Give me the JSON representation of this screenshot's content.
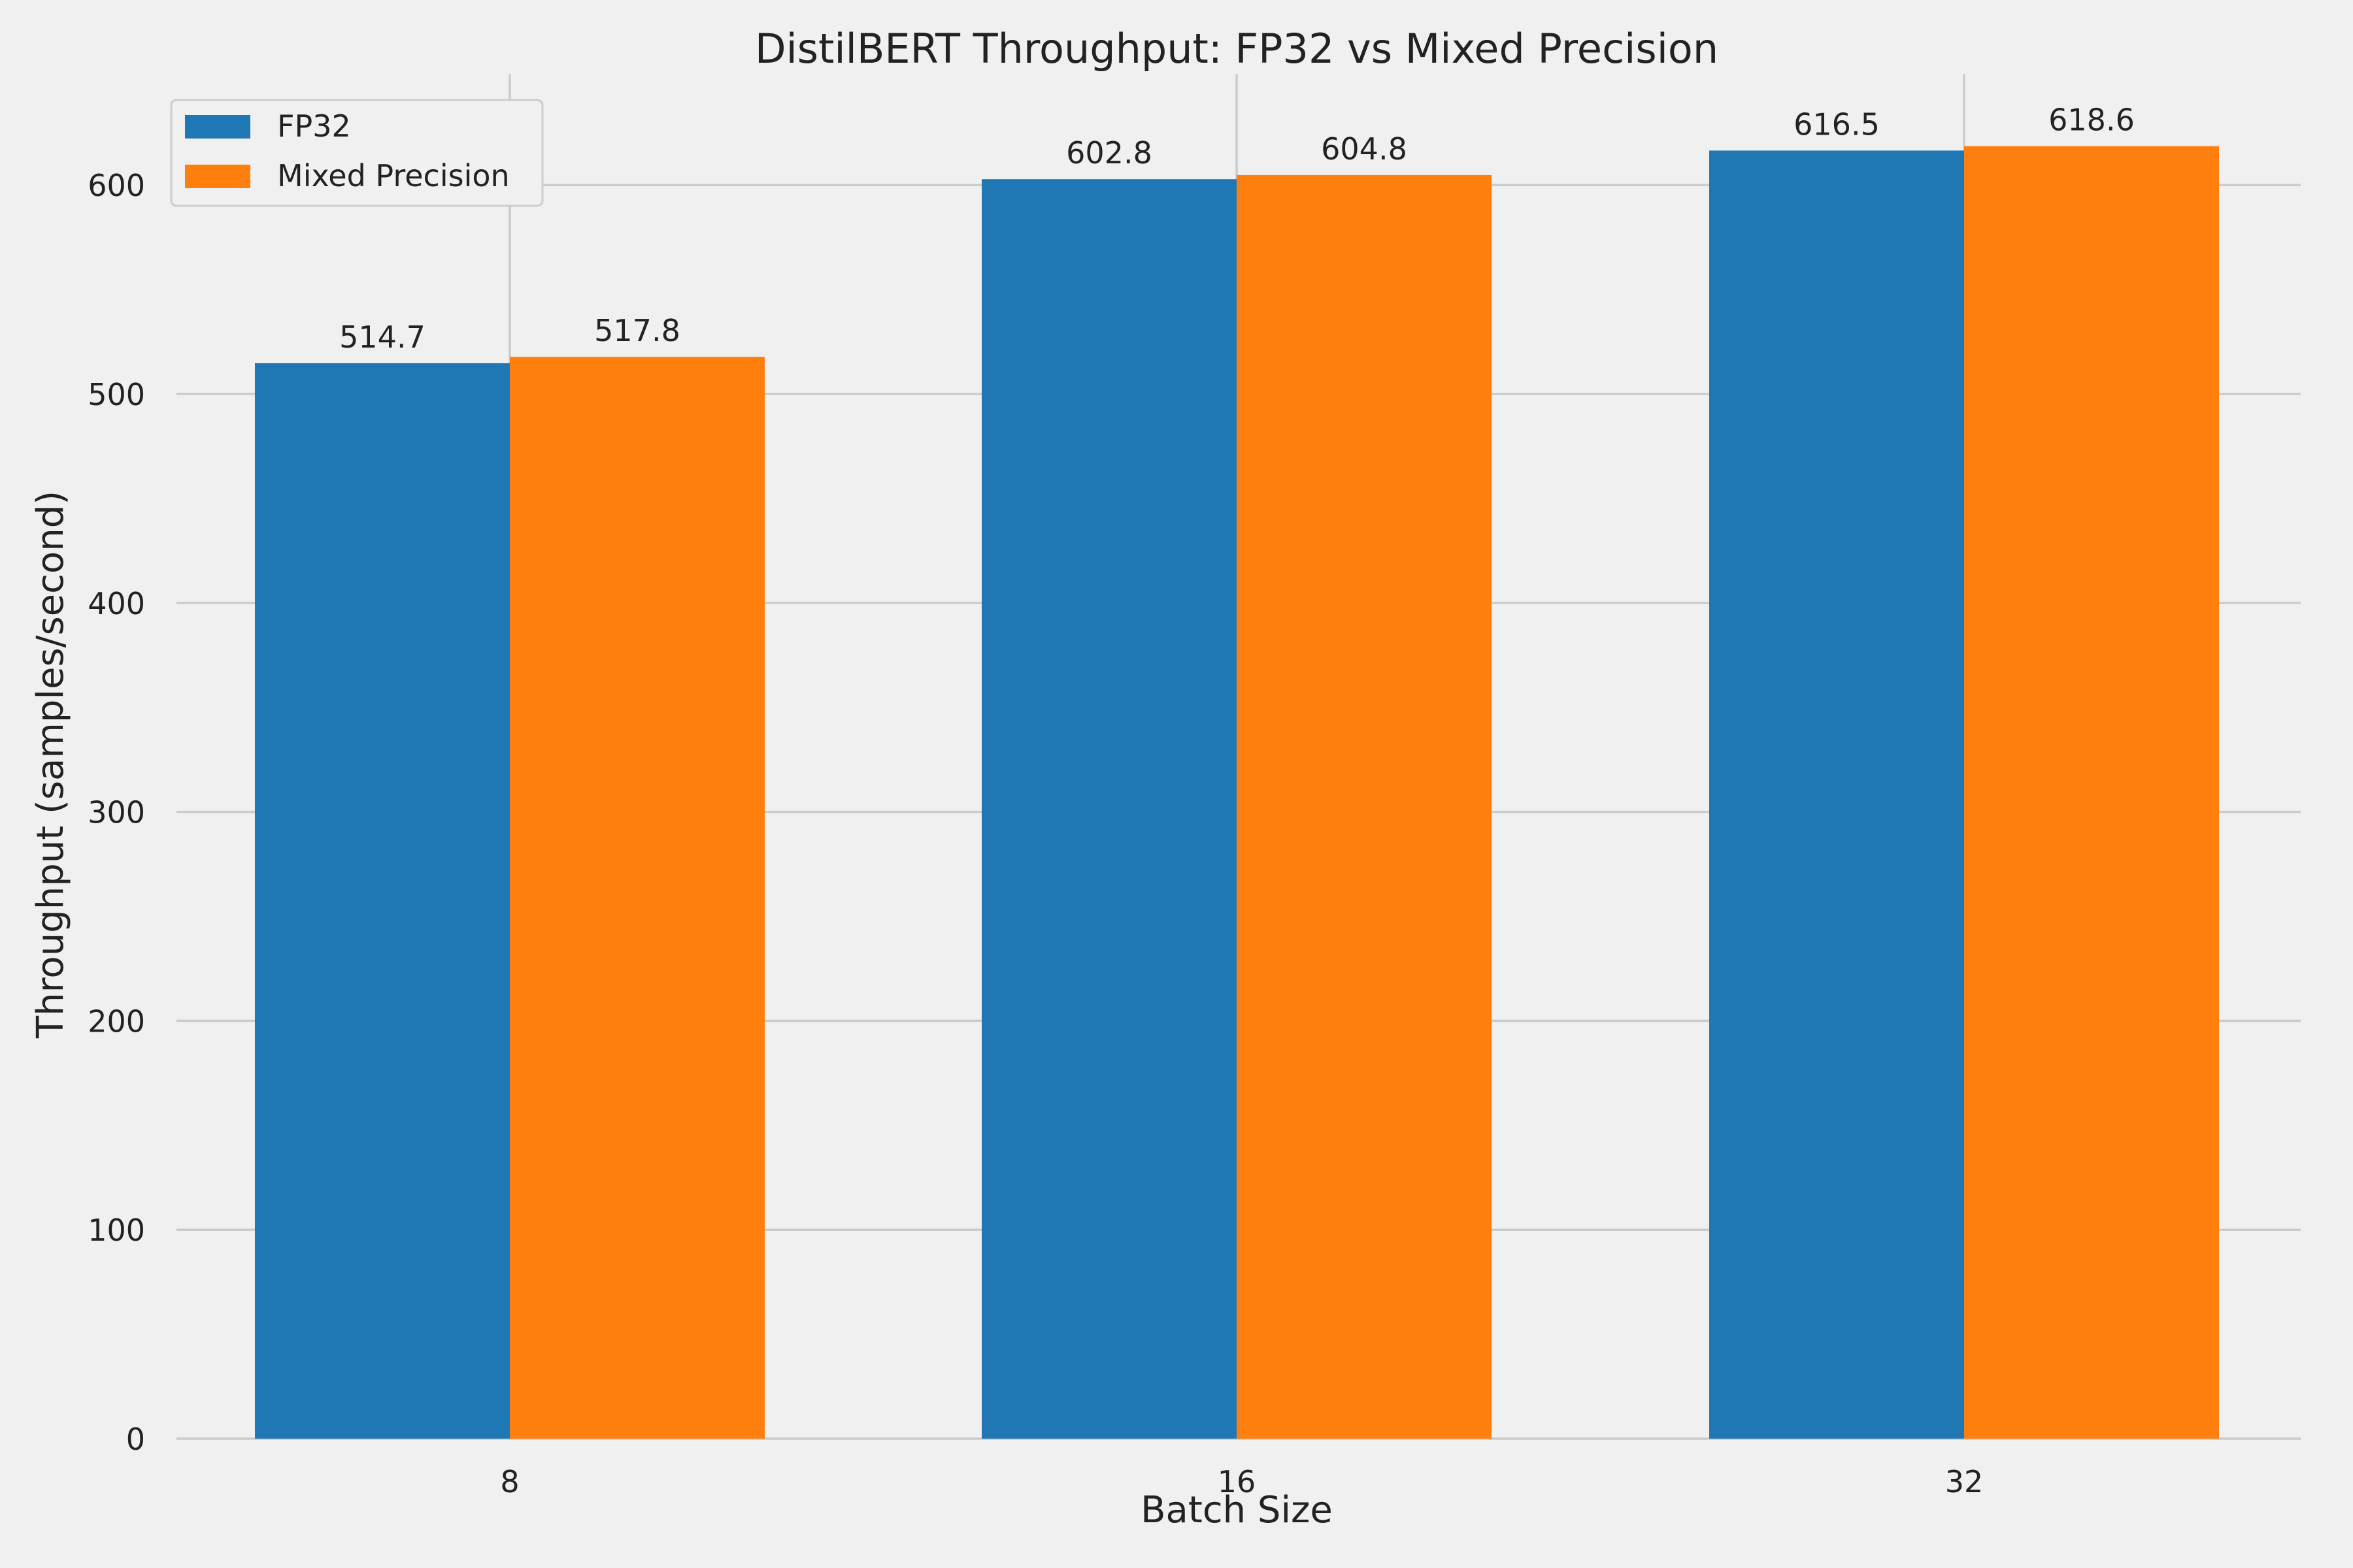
{
  "chart_data": {
    "type": "bar",
    "title": "DistilBERT Throughput: FP32 vs Mixed Precision",
    "xlabel": "Batch Size",
    "ylabel": "Throughput (samples/second)",
    "categories": [
      "8",
      "16",
      "32"
    ],
    "ylim": [
      0,
      650
    ],
    "yticks": [
      0,
      100,
      200,
      300,
      400,
      500,
      600
    ],
    "grid": true,
    "legend_position": "top-left",
    "series": [
      {
        "name": "FP32",
        "color": "#1f77b4",
        "values": [
          514.7,
          602.8,
          616.5
        ]
      },
      {
        "name": "Mixed Precision",
        "color": "#ff7f0e",
        "values": [
          517.8,
          604.8,
          618.6
        ]
      }
    ]
  }
}
